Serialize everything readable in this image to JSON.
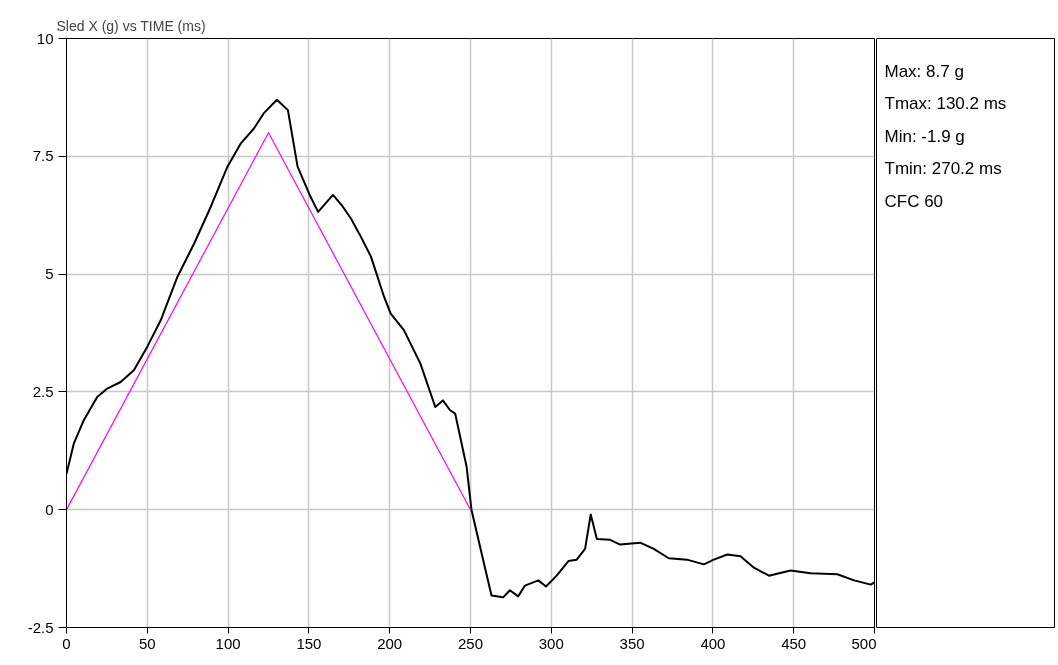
{
  "chart_data": {
    "type": "line",
    "title": "Sled X (g) vs TIME (ms)",
    "xlim": [
      0,
      500
    ],
    "xticks": [
      0,
      50,
      100,
      150,
      200,
      250,
      300,
      350,
      400,
      450,
      500
    ],
    "ylim": [
      -2.5,
      10
    ],
    "yticks": [
      -2.5,
      0,
      2.5,
      5,
      7.5,
      10
    ],
    "grid": true,
    "series": [
      {
        "color": "#000000",
        "x": [
          0,
          4.5,
          10.7,
          19,
          25.2,
          33.5,
          41.7,
          50,
          58.3,
          68.6,
          79,
          89.3,
          99.6,
          108,
          116,
          122,
          130.2,
          137,
          143,
          151,
          155.7,
          164.9,
          171,
          176,
          182.2,
          188.4,
          196.5,
          200.6,
          208.8,
          219,
          228.2,
          232.9,
          237.4,
          240.5,
          247.6,
          250.6,
          257.9,
          263,
          270.2,
          274.4,
          279.5,
          283.7,
          292,
          296.7,
          303.3,
          310.6,
          315.7,
          320.9,
          324.4,
          328.2,
          336.4,
          342.6,
          355,
          363.4,
          372.7,
          384,
          394.4,
          400.6,
          408.9,
          417.1,
          425.4,
          434.7,
          448,
          460.5,
          477,
          487.4,
          497.7,
          500
        ],
        "values": [
          0.76,
          1.4,
          1.9,
          2.39,
          2.57,
          2.71,
          2.96,
          3.46,
          4.02,
          4.94,
          5.65,
          6.43,
          7.28,
          7.78,
          8.09,
          8.41,
          8.7,
          8.48,
          7.28,
          6.64,
          6.32,
          6.68,
          6.43,
          6.18,
          5.79,
          5.37,
          4.52,
          4.16,
          3.81,
          3.1,
          2.18,
          2.32,
          2.11,
          2.04,
          0.91,
          0.0,
          -1.08,
          -1.82,
          -1.86,
          -1.71,
          -1.84,
          -1.61,
          -1.5,
          -1.63,
          -1.4,
          -1.09,
          -1.06,
          -0.83,
          -0.1,
          -0.62,
          -0.64,
          -0.74,
          -0.7,
          -0.83,
          -1.03,
          -1.06,
          -1.16,
          -1.06,
          -0.95,
          -0.99,
          -1.23,
          -1.4,
          -1.29,
          -1.35,
          -1.37,
          -1.5,
          -1.59,
          -1.54
        ]
      },
      {
        "color": "#ff00ff",
        "x": [
          0,
          125,
          250
        ],
        "values": [
          0,
          8,
          0
        ]
      }
    ],
    "annotations": [
      "Max: 8.7 g",
      "Tmax: 130.2 ms",
      "Min: -1.9 g",
      "Tmin: 270.2 ms",
      "CFC 60"
    ]
  }
}
